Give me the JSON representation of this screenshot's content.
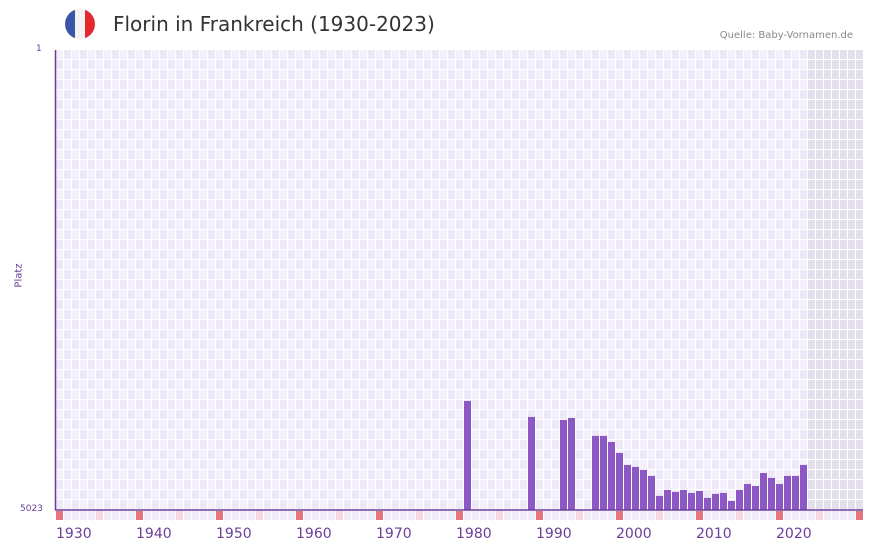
{
  "header": {
    "title": "Florin in Frankreich (1930-2023)",
    "source": "Quelle: Baby-Vornamen.de",
    "flag_colors": [
      "#3a55a6",
      "#f2f2f2",
      "#e3282f"
    ]
  },
  "axis": {
    "y_title": "Platz",
    "y_top_label": "1",
    "y_bottom_label": "5023",
    "x_labels": [
      "1930",
      "1940",
      "1950",
      "1960",
      "1970",
      "1980",
      "1990",
      "2000",
      "2010",
      "2020"
    ]
  },
  "colors": {
    "bar": "#8e57c6",
    "axis": "#6a3d9a",
    "grid_a": "#f3f0fb",
    "grid_b": "#ece8f7",
    "grid_line": "#ffffff",
    "future_shade": "#e3dfec",
    "decade_marker": "#e57380",
    "half_decade_marker": "#f5d7df",
    "year_marker": "#efebf8"
  },
  "chart_data": {
    "type": "bar",
    "title": "Florin in Frankreich (1930-2023)",
    "xlabel": "",
    "ylabel": "Platz",
    "y_inverted": true,
    "ylim": [
      1,
      5023
    ],
    "x_range": [
      1930,
      2030
    ],
    "data_range": [
      1930,
      2023
    ],
    "grid": true,
    "legend": null,
    "x": [
      1981,
      1989,
      1993,
      1994,
      1997,
      1998,
      1999,
      2000,
      2001,
      2002,
      2003,
      2004,
      2005,
      2006,
      2007,
      2008,
      2009,
      2010,
      2011,
      2012,
      2013,
      2014,
      2015,
      2016,
      2017,
      2018,
      2019,
      2020,
      2021,
      2022,
      2023
    ],
    "values": [
      3832,
      4007,
      4040,
      4018,
      4214,
      4214,
      4280,
      4400,
      4531,
      4553,
      4585,
      4651,
      4869,
      4804,
      4826,
      4804,
      4837,
      4815,
      4891,
      4847,
      4837,
      4924,
      4804,
      4739,
      4761,
      4619,
      4673,
      4739,
      4651,
      4651,
      4531
    ]
  }
}
